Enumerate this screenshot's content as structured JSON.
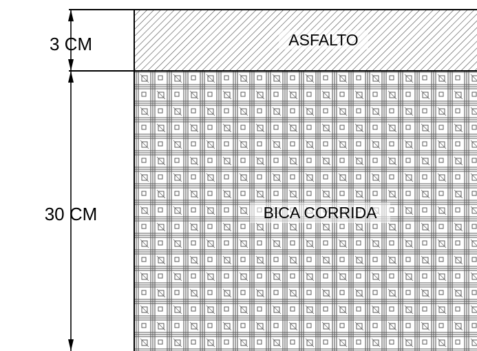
{
  "layers": [
    {
      "label": "ASFALTO",
      "thickness_label": "3 CM",
      "pattern": "diagonal-hatch"
    },
    {
      "label": "BICA CORRIDA",
      "thickness_label": "30 CM",
      "pattern": "gravel-crosshatch"
    }
  ],
  "colors": {
    "line": "#000000",
    "hatch": "#4a4a4a",
    "background": "#ffffff"
  }
}
